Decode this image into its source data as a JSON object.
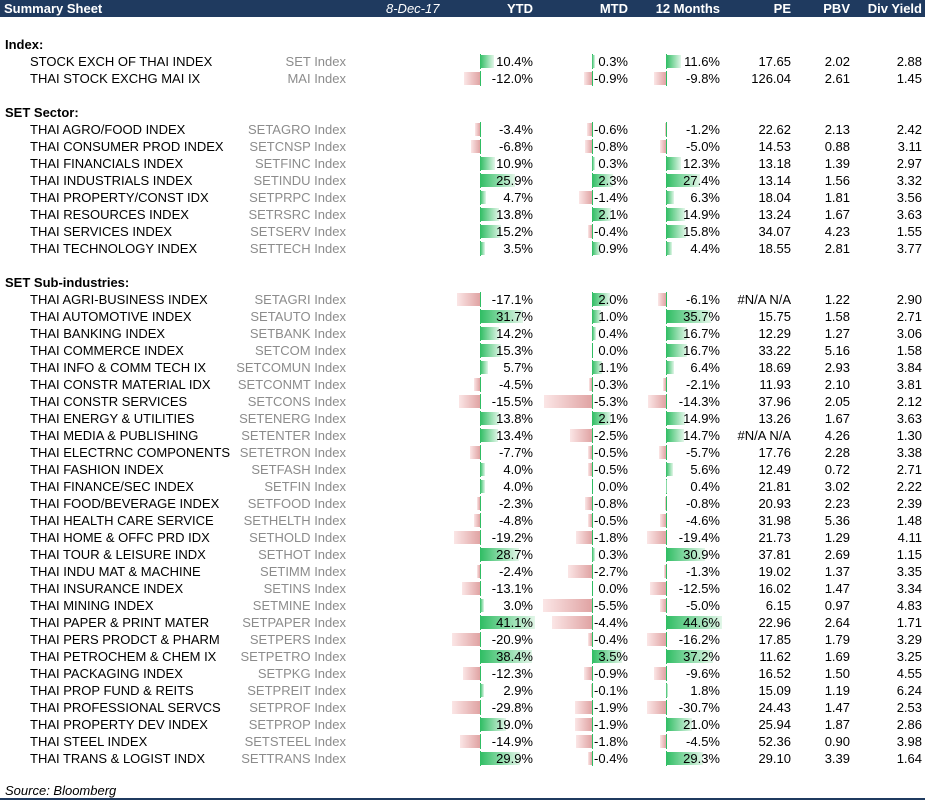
{
  "header": {
    "title": "Summary Sheet",
    "date": "8-Dec-17",
    "col_ytd": "YTD",
    "col_mtd": "MTD",
    "col_12m": "12 Months",
    "col_pe": "PE",
    "col_pbv": "PBV",
    "col_div": "Div Yield"
  },
  "bar_colors": {
    "positive": "#2fbd63",
    "negative": "#e0a3a3"
  },
  "sections": [
    {
      "title": "Index:",
      "rows": [
        {
          "name": "STOCK EXCH OF THAI INDEX",
          "ticker": "SET Index",
          "ytd": "10.4%",
          "mtd": "0.3%",
          "m12": "11.6%",
          "pe": "17.65",
          "pbv": "2.02",
          "div": "2.88",
          "ytd_v": 10.4,
          "mtd_v": 0.3,
          "m12_v": 11.6
        },
        {
          "name": "THAI STOCK EXCHG MAI IX",
          "ticker": "MAI Index",
          "ytd": "-12.0%",
          "mtd": "-0.9%",
          "m12": "-9.8%",
          "pe": "126.04",
          "pbv": "2.61",
          "div": "1.45",
          "ytd_v": -12.0,
          "mtd_v": -0.9,
          "m12_v": -9.8
        }
      ]
    },
    {
      "title": "SET Sector:",
      "rows": [
        {
          "name": "THAI AGRO/FOOD INDEX",
          "ticker": "SETAGRO Index",
          "ytd": "-3.4%",
          "mtd": "-0.6%",
          "m12": "-1.2%",
          "pe": "22.62",
          "pbv": "2.13",
          "div": "2.42",
          "ytd_v": -3.4,
          "mtd_v": -0.6,
          "m12_v": -1.2
        },
        {
          "name": "THAI CONSUMER PROD INDEX",
          "ticker": "SETCNSP Index",
          "ytd": "-6.8%",
          "mtd": "-0.8%",
          "m12": "-5.0%",
          "pe": "14.53",
          "pbv": "0.88",
          "div": "3.11",
          "ytd_v": -6.8,
          "mtd_v": -0.8,
          "m12_v": -5.0
        },
        {
          "name": "THAI FINANCIALS INDEX",
          "ticker": "SETFINC Index",
          "ytd": "10.9%",
          "mtd": "0.3%",
          "m12": "12.3%",
          "pe": "13.18",
          "pbv": "1.39",
          "div": "2.97",
          "ytd_v": 10.9,
          "mtd_v": 0.3,
          "m12_v": 12.3
        },
        {
          "name": "THAI INDUSTRIALS INDEX",
          "ticker": "SETINDU Index",
          "ytd": "25.9%",
          "mtd": "2.3%",
          "m12": "27.4%",
          "pe": "13.14",
          "pbv": "1.56",
          "div": "3.32",
          "ytd_v": 25.9,
          "mtd_v": 2.3,
          "m12_v": 27.4
        },
        {
          "name": "THAI PROPERTY/CONST IDX",
          "ticker": "SETPRPC Index",
          "ytd": "4.7%",
          "mtd": "-1.4%",
          "m12": "6.3%",
          "pe": "18.04",
          "pbv": "1.81",
          "div": "3.56",
          "ytd_v": 4.7,
          "mtd_v": -1.4,
          "m12_v": 6.3
        },
        {
          "name": "THAI RESOURCES INDEX",
          "ticker": "SETRSRC Index",
          "ytd": "13.8%",
          "mtd": "2.1%",
          "m12": "14.9%",
          "pe": "13.24",
          "pbv": "1.67",
          "div": "3.63",
          "ytd_v": 13.8,
          "mtd_v": 2.1,
          "m12_v": 14.9
        },
        {
          "name": "THAI SERVICES INDEX",
          "ticker": "SETSERV Index",
          "ytd": "15.2%",
          "mtd": "-0.4%",
          "m12": "15.8%",
          "pe": "34.07",
          "pbv": "4.23",
          "div": "1.55",
          "ytd_v": 15.2,
          "mtd_v": -0.4,
          "m12_v": 15.8
        },
        {
          "name": "THAI TECHNOLOGY INDEX",
          "ticker": "SETTECH Index",
          "ytd": "3.5%",
          "mtd": "0.9%",
          "m12": "4.4%",
          "pe": "18.55",
          "pbv": "2.81",
          "div": "3.77",
          "ytd_v": 3.5,
          "mtd_v": 0.9,
          "m12_v": 4.4
        }
      ]
    },
    {
      "title": "SET Sub-industries:",
      "rows": [
        {
          "name": "THAI AGRI-BUSINESS INDEX",
          "ticker": "SETAGRI Index",
          "ytd": "-17.1%",
          "mtd": "2.0%",
          "m12": "-6.1%",
          "pe": "#N/A N/A",
          "pbv": "1.22",
          "div": "2.90",
          "ytd_v": -17.1,
          "mtd_v": 2.0,
          "m12_v": -6.1
        },
        {
          "name": "THAI AUTOMOTIVE INDEX",
          "ticker": "SETAUTO Index",
          "ytd": "31.7%",
          "mtd": "1.0%",
          "m12": "35.7%",
          "pe": "15.75",
          "pbv": "1.58",
          "div": "2.71",
          "ytd_v": 31.7,
          "mtd_v": 1.0,
          "m12_v": 35.7
        },
        {
          "name": "THAI BANKING INDEX",
          "ticker": "SETBANK Index",
          "ytd": "14.2%",
          "mtd": "0.4%",
          "m12": "16.7%",
          "pe": "12.29",
          "pbv": "1.27",
          "div": "3.06",
          "ytd_v": 14.2,
          "mtd_v": 0.4,
          "m12_v": 16.7
        },
        {
          "name": "THAI COMMERCE INDEX",
          "ticker": "SETCOM Index",
          "ytd": "15.3%",
          "mtd": "0.0%",
          "m12": "16.7%",
          "pe": "33.22",
          "pbv": "5.16",
          "div": "1.58",
          "ytd_v": 15.3,
          "mtd_v": 0.0,
          "m12_v": 16.7
        },
        {
          "name": "THAI INFO & COMM TECH IX",
          "ticker": "SETCOMUN Index",
          "ytd": "5.7%",
          "mtd": "1.1%",
          "m12": "6.4%",
          "pe": "18.69",
          "pbv": "2.93",
          "div": "3.84",
          "ytd_v": 5.7,
          "mtd_v": 1.1,
          "m12_v": 6.4
        },
        {
          "name": "THAI CONSTR MATERIAL IDX",
          "ticker": "SETCONMT Index",
          "ytd": "-4.5%",
          "mtd": "-0.3%",
          "m12": "-2.1%",
          "pe": "11.93",
          "pbv": "2.10",
          "div": "3.81",
          "ytd_v": -4.5,
          "mtd_v": -0.3,
          "m12_v": -2.1
        },
        {
          "name": "THAI CONSTR SERVICES",
          "ticker": "SETCONS Index",
          "ytd": "-15.5%",
          "mtd": "-5.3%",
          "m12": "-14.3%",
          "pe": "37.96",
          "pbv": "2.05",
          "div": "2.12",
          "ytd_v": -15.5,
          "mtd_v": -5.3,
          "m12_v": -14.3
        },
        {
          "name": "THAI ENERGY & UTILITIES",
          "ticker": "SETENERG Index",
          "ytd": "13.8%",
          "mtd": "2.1%",
          "m12": "14.9%",
          "pe": "13.26",
          "pbv": "1.67",
          "div": "3.63",
          "ytd_v": 13.8,
          "mtd_v": 2.1,
          "m12_v": 14.9
        },
        {
          "name": "THAI MEDIA & PUBLISHING",
          "ticker": "SETENTER Index",
          "ytd": "13.4%",
          "mtd": "-2.5%",
          "m12": "14.7%",
          "pe": "#N/A N/A",
          "pbv": "4.26",
          "div": "1.30",
          "ytd_v": 13.4,
          "mtd_v": -2.5,
          "m12_v": 14.7
        },
        {
          "name": "THAI ELECTRNC COMPONENTS",
          "ticker": "SETETRON Index",
          "ytd": "-7.7%",
          "mtd": "-0.5%",
          "m12": "-5.7%",
          "pe": "17.76",
          "pbv": "2.28",
          "div": "3.38",
          "ytd_v": -7.7,
          "mtd_v": -0.5,
          "m12_v": -5.7
        },
        {
          "name": "THAI FASHION INDEX",
          "ticker": "SETFASH Index",
          "ytd": "4.0%",
          "mtd": "-0.5%",
          "m12": "5.6%",
          "pe": "12.49",
          "pbv": "0.72",
          "div": "2.71",
          "ytd_v": 4.0,
          "mtd_v": -0.5,
          "m12_v": 5.6
        },
        {
          "name": "THAI FINANCE/SEC INDEX",
          "ticker": "SETFIN Index",
          "ytd": "4.0%",
          "mtd": "0.0%",
          "m12": "0.4%",
          "pe": "21.81",
          "pbv": "3.02",
          "div": "2.22",
          "ytd_v": 4.0,
          "mtd_v": 0.0,
          "m12_v": 0.4
        },
        {
          "name": "THAI FOOD/BEVERAGE INDEX",
          "ticker": "SETFOOD Index",
          "ytd": "-2.3%",
          "mtd": "-0.8%",
          "m12": "-0.8%",
          "pe": "20.93",
          "pbv": "2.23",
          "div": "2.39",
          "ytd_v": -2.3,
          "mtd_v": -0.8,
          "m12_v": -0.8
        },
        {
          "name": "THAI HEALTH CARE SERVICE",
          "ticker": "SETHELTH Index",
          "ytd": "-4.8%",
          "mtd": "-0.5%",
          "m12": "-4.6%",
          "pe": "31.98",
          "pbv": "5.36",
          "div": "1.48",
          "ytd_v": -4.8,
          "mtd_v": -0.5,
          "m12_v": -4.6
        },
        {
          "name": "THAI HOME & OFFC PRD IDX",
          "ticker": "SETHOLD Index",
          "ytd": "-19.2%",
          "mtd": "-1.8%",
          "m12": "-19.4%",
          "pe": "21.73",
          "pbv": "1.29",
          "div": "4.11",
          "ytd_v": -19.2,
          "mtd_v": -1.8,
          "m12_v": -19.4
        },
        {
          "name": "THAI TOUR & LEISURE INDX",
          "ticker": "SETHOT Index",
          "ytd": "28.7%",
          "mtd": "0.3%",
          "m12": "30.9%",
          "pe": "37.81",
          "pbv": "2.69",
          "div": "1.15",
          "ytd_v": 28.7,
          "mtd_v": 0.3,
          "m12_v": 30.9
        },
        {
          "name": "THAI INDU MAT & MACHINE",
          "ticker": "SETIMM Index",
          "ytd": "-2.4%",
          "mtd": "-2.7%",
          "m12": "-1.3%",
          "pe": "19.02",
          "pbv": "1.37",
          "div": "3.35",
          "ytd_v": -2.4,
          "mtd_v": -2.7,
          "m12_v": -1.3
        },
        {
          "name": "THAI INSURANCE INDEX",
          "ticker": "SETINS Index",
          "ytd": "-13.1%",
          "mtd": "0.0%",
          "m12": "-12.5%",
          "pe": "16.02",
          "pbv": "1.47",
          "div": "3.34",
          "ytd_v": -13.1,
          "mtd_v": 0.0,
          "m12_v": -12.5
        },
        {
          "name": "THAI MINING INDEX",
          "ticker": "SETMINE Index",
          "ytd": "3.0%",
          "mtd": "-5.5%",
          "m12": "-5.0%",
          "pe": "6.15",
          "pbv": "0.97",
          "div": "4.83",
          "ytd_v": 3.0,
          "mtd_v": -5.5,
          "m12_v": -5.0
        },
        {
          "name": "THAI PAPER & PRINT MATER",
          "ticker": "SETPAPER Index",
          "ytd": "41.1%",
          "mtd": "-4.4%",
          "m12": "44.6%",
          "pe": "22.96",
          "pbv": "2.64",
          "div": "1.71",
          "ytd_v": 41.1,
          "mtd_v": -4.4,
          "m12_v": 44.6
        },
        {
          "name": "THAI PERS PRODCT & PHARM",
          "ticker": "SETPERS Index",
          "ytd": "-20.9%",
          "mtd": "-0.4%",
          "m12": "-16.2%",
          "pe": "17.85",
          "pbv": "1.79",
          "div": "3.29",
          "ytd_v": -20.9,
          "mtd_v": -0.4,
          "m12_v": -16.2
        },
        {
          "name": "THAI PETROCHEM & CHEM IX",
          "ticker": "SETPETRO Index",
          "ytd": "38.4%",
          "mtd": "3.5%",
          "m12": "37.2%",
          "pe": "11.62",
          "pbv": "1.69",
          "div": "3.25",
          "ytd_v": 38.4,
          "mtd_v": 3.5,
          "m12_v": 37.2
        },
        {
          "name": "THAI PACKAGING INDEX",
          "ticker": "SETPKG Index",
          "ytd": "-12.3%",
          "mtd": "-0.9%",
          "m12": "-9.6%",
          "pe": "16.52",
          "pbv": "1.50",
          "div": "4.55",
          "ytd_v": -12.3,
          "mtd_v": -0.9,
          "m12_v": -9.6
        },
        {
          "name": "THAI PROP FUND & REITS",
          "ticker": "SETPREIT Index",
          "ytd": "2.9%",
          "mtd": "-0.1%",
          "m12": "1.8%",
          "pe": "15.09",
          "pbv": "1.19",
          "div": "6.24",
          "ytd_v": 2.9,
          "mtd_v": -0.1,
          "m12_v": 1.8
        },
        {
          "name": "THAI PROFESSIONAL SERVCS",
          "ticker": "SETPROF Index",
          "ytd": "-29.8%",
          "mtd": "-1.9%",
          "m12": "-30.7%",
          "pe": "24.43",
          "pbv": "1.47",
          "div": "2.53",
          "ytd_v": -29.8,
          "mtd_v": -1.9,
          "m12_v": -30.7
        },
        {
          "name": "THAI PROPERTY DEV INDEX",
          "ticker": "SETPROP Index",
          "ytd": "19.0%",
          "mtd": "-1.9%",
          "m12": "21.0%",
          "pe": "25.94",
          "pbv": "1.87",
          "div": "2.86",
          "ytd_v": 19.0,
          "mtd_v": -1.9,
          "m12_v": 21.0
        },
        {
          "name": "THAI STEEL INDEX",
          "ticker": "SETSTEEL Index",
          "ytd": "-14.9%",
          "mtd": "-1.8%",
          "m12": "-4.5%",
          "pe": "52.36",
          "pbv": "0.90",
          "div": "3.98",
          "ytd_v": -14.9,
          "mtd_v": -1.8,
          "m12_v": -4.5
        },
        {
          "name": "THAI TRANS & LOGIST INDX",
          "ticker": "SETTRANS Index",
          "ytd": "29.9%",
          "mtd": "-0.4%",
          "m12": "29.3%",
          "pe": "29.10",
          "pbv": "3.39",
          "div": "1.64",
          "ytd_v": 29.9,
          "mtd_v": -0.4,
          "m12_v": 29.3
        }
      ]
    }
  ],
  "source": "Source: Bloomberg"
}
